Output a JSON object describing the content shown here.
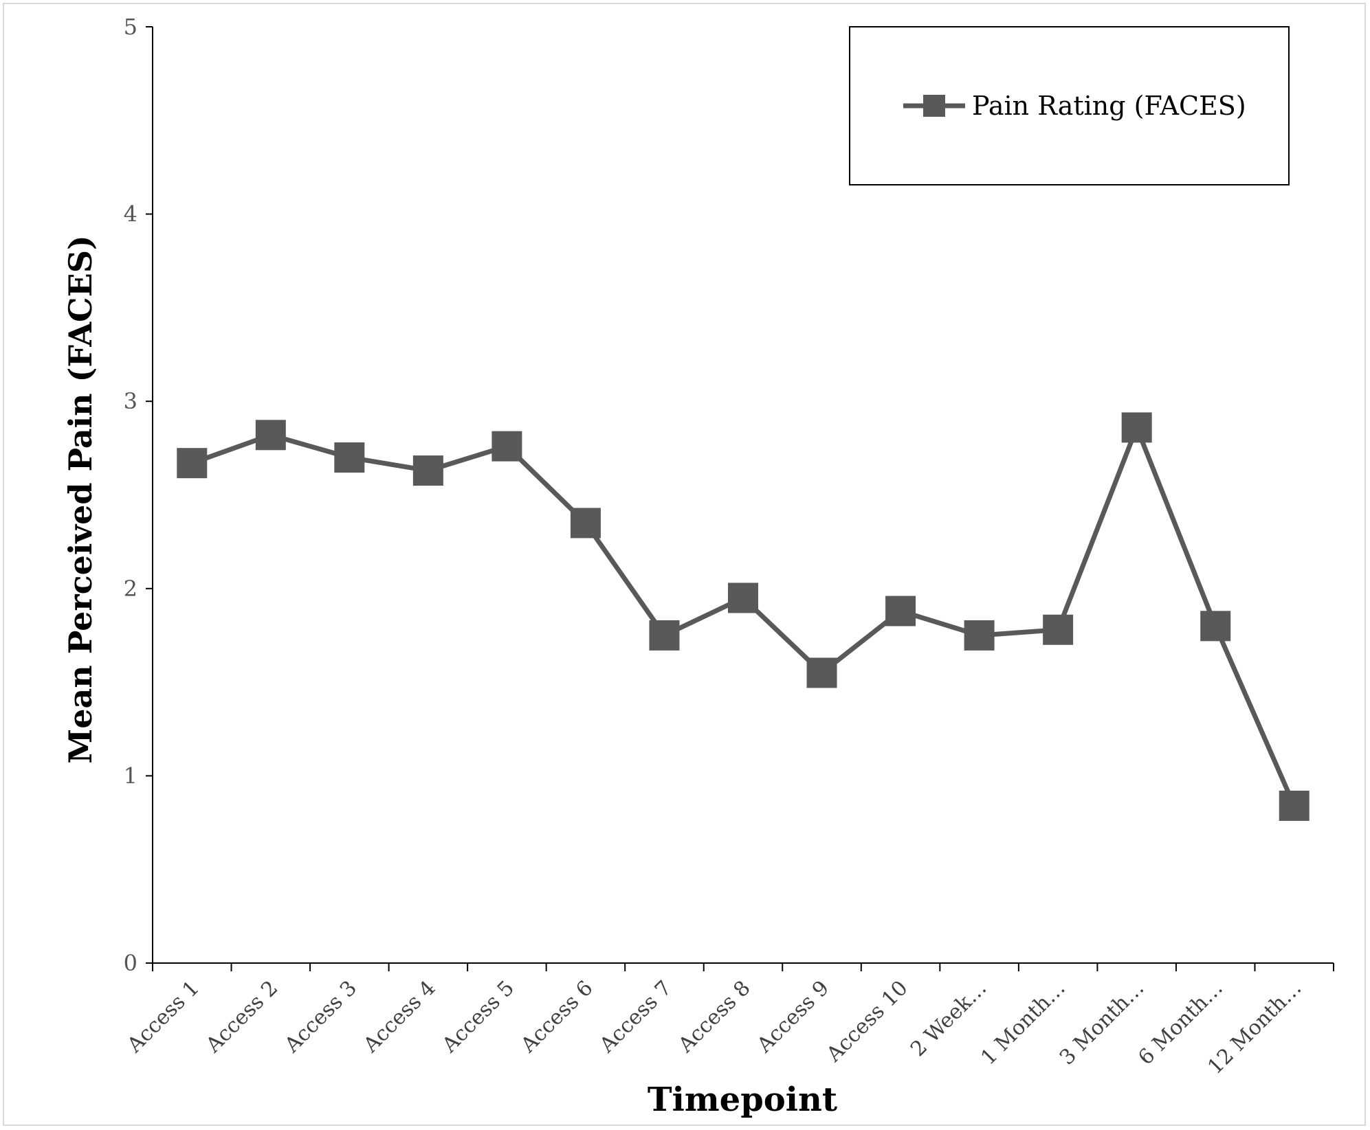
{
  "chart_data": {
    "type": "line",
    "categories": [
      "Access 1",
      "Access 2",
      "Access 3",
      "Access 4",
      "Access 5",
      "Access 6",
      "Access 7",
      "Access 8",
      "Access 9",
      "Access 10",
      "2 Week…",
      "1 Month…",
      "3 Month…",
      "6 Month…",
      "12 Month…"
    ],
    "series": [
      {
        "name": "Pain Rating (FACES)",
        "values": [
          2.67,
          2.82,
          2.7,
          2.63,
          2.76,
          2.35,
          1.75,
          1.95,
          1.55,
          1.88,
          1.75,
          1.78,
          2.86,
          1.8,
          0.84
        ],
        "color": "#595959",
        "marker": "square"
      }
    ],
    "xlabel": "Timepoint",
    "ylabel": "Mean Perceived Pain (FACES)",
    "ylim": [
      0,
      5
    ],
    "yticks": [
      0,
      1,
      2,
      3,
      4,
      5
    ],
    "grid": false,
    "legend_position": "top-right"
  }
}
